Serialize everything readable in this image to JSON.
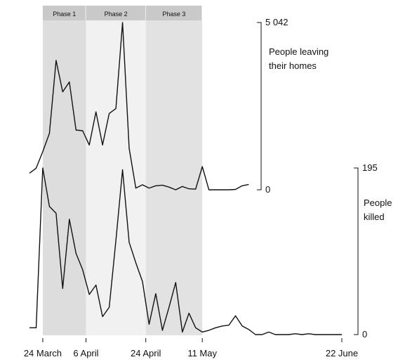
{
  "chart_data": {
    "type": "line",
    "colors": {
      "phase_1": "#dddddd",
      "phase_2": "#f1f1f1",
      "phase_3": "#e2e2e2",
      "phase_header": "#c9c9c9",
      "line": "#111111"
    },
    "phases": [
      {
        "label": "Phase 1",
        "start": "2020-03-24",
        "end": "2020-04-06"
      },
      {
        "label": "Phase 2",
        "start": "2020-04-06",
        "end": "2020-04-24"
      },
      {
        "label": "Phase 3",
        "start": "2020-04-24",
        "end": "2020-05-11"
      }
    ],
    "x_ticks": [
      {
        "date": "2020-03-24",
        "label": "24 March"
      },
      {
        "date": "2020-04-06",
        "label": "6 April"
      },
      {
        "date": "2020-04-24",
        "label": "24 April"
      },
      {
        "date": "2020-05-11",
        "label": "11 May"
      },
      {
        "date": "2020-06-22",
        "label": "22 June"
      }
    ],
    "xlim": [
      "2020-03-20",
      "2020-06-22"
    ],
    "series": [
      {
        "name": "People leaving their homes",
        "label_lines": [
          "People leaving",
          "their homes"
        ],
        "axis_max_label": "5 042",
        "axis_min_label": "0",
        "ylim": [
          0,
          5042
        ],
        "points": [
          [
            "2020-03-20",
            500
          ],
          [
            "2020-03-22",
            650
          ],
          [
            "2020-03-24",
            1150
          ],
          [
            "2020-03-26",
            1700
          ],
          [
            "2020-03-28",
            3900
          ],
          [
            "2020-03-30",
            2950
          ],
          [
            "2020-04-01",
            3250
          ],
          [
            "2020-04-03",
            1800
          ],
          [
            "2020-04-05",
            1780
          ],
          [
            "2020-04-07",
            1350
          ],
          [
            "2020-04-09",
            2350
          ],
          [
            "2020-04-11",
            1350
          ],
          [
            "2020-04-13",
            2300
          ],
          [
            "2020-04-15",
            2450
          ],
          [
            "2020-04-17",
            5042
          ],
          [
            "2020-04-19",
            1250
          ],
          [
            "2020-04-21",
            50
          ],
          [
            "2020-04-23",
            150
          ],
          [
            "2020-04-25",
            50
          ],
          [
            "2020-04-27",
            120
          ],
          [
            "2020-04-29",
            140
          ],
          [
            "2020-05-01",
            80
          ],
          [
            "2020-05-03",
            0
          ],
          [
            "2020-05-05",
            100
          ],
          [
            "2020-05-07",
            30
          ],
          [
            "2020-05-09",
            20
          ],
          [
            "2020-05-11",
            700
          ],
          [
            "2020-05-13",
            0
          ],
          [
            "2020-05-15",
            0
          ],
          [
            "2020-05-17",
            0
          ],
          [
            "2020-05-19",
            0
          ],
          [
            "2020-05-21",
            10
          ],
          [
            "2020-05-23",
            120
          ],
          [
            "2020-05-25",
            160
          ]
        ]
      },
      {
        "name": "People killed",
        "label_lines": [
          "People",
          "killed"
        ],
        "axis_max_label": "195",
        "axis_min_label": "0",
        "ylim": [
          0,
          195
        ],
        "points": [
          [
            "2020-03-20",
            8
          ],
          [
            "2020-03-22",
            8
          ],
          [
            "2020-03-24",
            195
          ],
          [
            "2020-03-26",
            150
          ],
          [
            "2020-03-28",
            142
          ],
          [
            "2020-03-30",
            54
          ],
          [
            "2020-04-01",
            135
          ],
          [
            "2020-04-03",
            95
          ],
          [
            "2020-04-05",
            76
          ],
          [
            "2020-04-07",
            47
          ],
          [
            "2020-04-09",
            58
          ],
          [
            "2020-04-11",
            21
          ],
          [
            "2020-04-13",
            32
          ],
          [
            "2020-04-15",
            110
          ],
          [
            "2020-04-17",
            193
          ],
          [
            "2020-04-19",
            108
          ],
          [
            "2020-04-21",
            84
          ],
          [
            "2020-04-23",
            62
          ],
          [
            "2020-04-25",
            12
          ],
          [
            "2020-04-27",
            48
          ],
          [
            "2020-04-29",
            5
          ],
          [
            "2020-05-01",
            32
          ],
          [
            "2020-05-03",
            61
          ],
          [
            "2020-05-05",
            3
          ],
          [
            "2020-05-07",
            25
          ],
          [
            "2020-05-09",
            8
          ],
          [
            "2020-05-11",
            3
          ],
          [
            "2020-05-13",
            5
          ],
          [
            "2020-05-15",
            8
          ],
          [
            "2020-05-17",
            10
          ],
          [
            "2020-05-19",
            11
          ],
          [
            "2020-05-21",
            22
          ],
          [
            "2020-05-23",
            10
          ],
          [
            "2020-05-25",
            6
          ],
          [
            "2020-05-27",
            0
          ],
          [
            "2020-05-29",
            0
          ],
          [
            "2020-05-31",
            3
          ],
          [
            "2020-06-02",
            0
          ],
          [
            "2020-06-04",
            0
          ],
          [
            "2020-06-06",
            0
          ],
          [
            "2020-06-08",
            1
          ],
          [
            "2020-06-10",
            0
          ],
          [
            "2020-06-12",
            1
          ],
          [
            "2020-06-14",
            0
          ],
          [
            "2020-06-16",
            0
          ],
          [
            "2020-06-18",
            0
          ],
          [
            "2020-06-20",
            0
          ],
          [
            "2020-06-22",
            0
          ]
        ]
      }
    ]
  }
}
